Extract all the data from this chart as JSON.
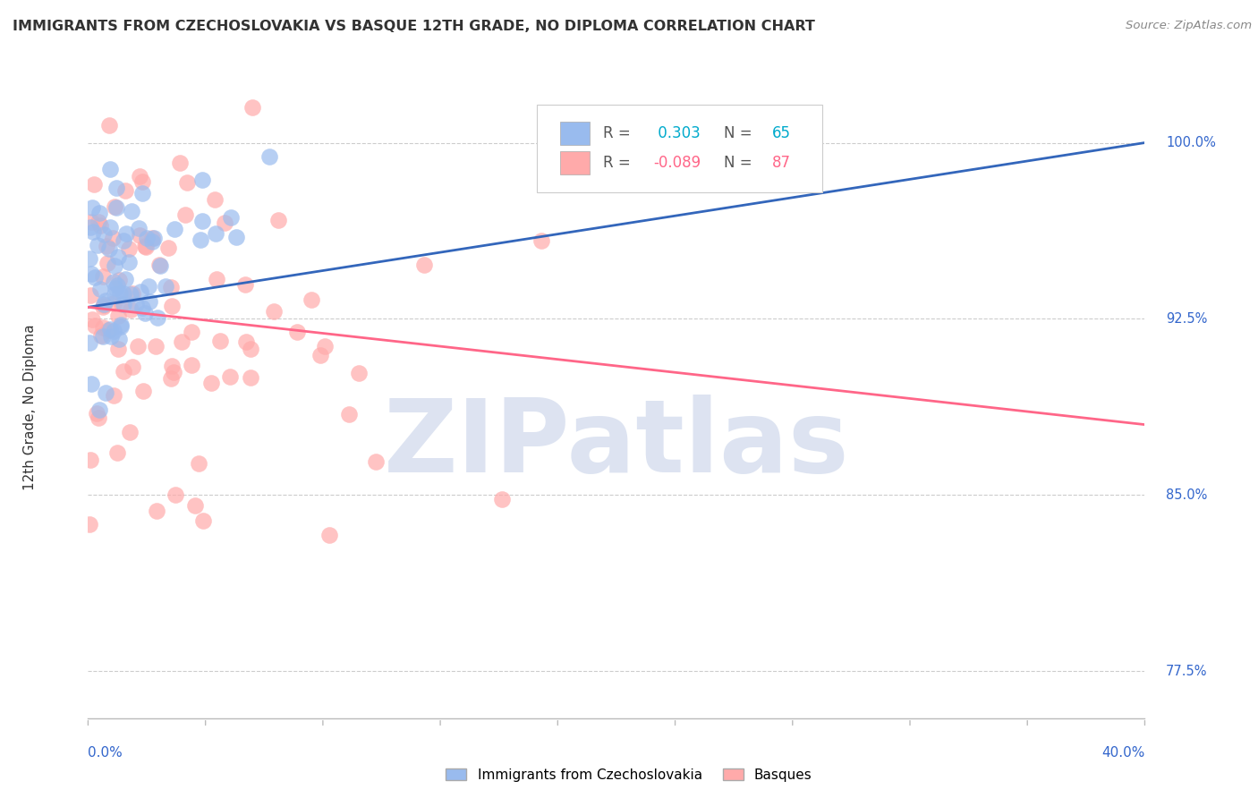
{
  "title": "IMMIGRANTS FROM CZECHOSLOVAKIA VS BASQUE 12TH GRADE, NO DIPLOMA CORRELATION CHART",
  "source": "Source: ZipAtlas.com",
  "legend_blue_label": "Immigrants from Czechoslovakia",
  "legend_pink_label": "Basques",
  "R_blue": 0.303,
  "N_blue": 65,
  "R_pink": -0.089,
  "N_pink": 87,
  "blue_color": "#99BBEE",
  "pink_color": "#FFAAAA",
  "blue_line_color": "#3366BB",
  "pink_line_color": "#FF6688",
  "xmin": 0.0,
  "xmax": 40.0,
  "ymin": 75.5,
  "ymax": 102.0,
  "watermark": "ZIPatlas",
  "watermark_color": "#AABBDD",
  "background_color": "#FFFFFF",
  "grid_color": "#CCCCCC",
  "ylabel_label": "12th Grade, No Diploma"
}
